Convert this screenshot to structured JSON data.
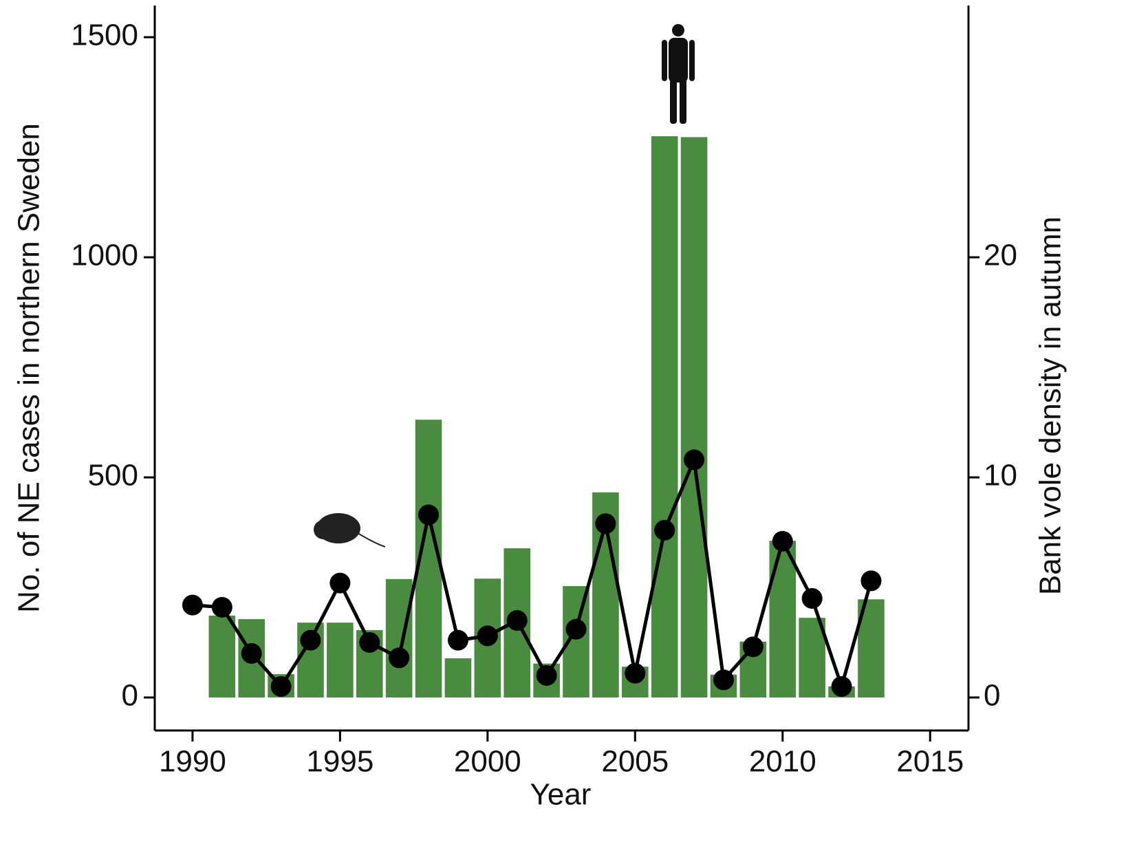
{
  "chart_data": {
    "type": "combo",
    "xlabel": "Year",
    "ylabel": "No. of NE cases in northern Sweden",
    "y2label": "Bank vole density in autumn",
    "xlim": [
      1988.72,
      2016.3
    ],
    "xticks": [
      1990,
      1995,
      2000,
      2005,
      2010,
      2015
    ],
    "ylim": [
      -75,
      1572
    ],
    "yticks": [
      0,
      500,
      1000,
      1500
    ],
    "y2lim": [
      -1.5,
      31.44
    ],
    "y2ticks": [
      0,
      10,
      20
    ],
    "series": [
      {
        "type": "bar",
        "color": "#4a8c3f",
        "x": [
          1991,
          1992,
          1993,
          1994,
          1995,
          1996,
          1997,
          1998,
          1999,
          2000,
          2001,
          2002,
          2003,
          2004,
          2005,
          2006,
          2007,
          2008,
          2009,
          2010,
          2011,
          2012,
          2013
        ],
        "values": [
          186,
          178,
          53,
          170,
          170,
          153,
          269,
          631,
          89,
          270,
          339,
          77,
          253,
          466,
          70,
          1275,
          1273,
          52,
          127,
          356,
          181,
          25,
          223
        ]
      },
      {
        "type": "line",
        "axis": "y2",
        "color": "#000000",
        "x": [
          1990,
          1991,
          1992,
          1993,
          1994,
          1995,
          1996,
          1997,
          1998,
          1999,
          2000,
          2001,
          2002,
          2003,
          2004,
          2005,
          2006,
          2007,
          2008,
          2009,
          2010,
          2011,
          2012,
          2013
        ],
        "values": [
          4.2,
          4.1,
          2.0,
          0.5,
          2.6,
          5.2,
          2.5,
          1.8,
          8.3,
          2.6,
          2.8,
          3.5,
          1.0,
          3.1,
          7.9,
          1.1,
          7.6,
          10.8,
          0.8,
          2.3,
          7.1,
          4.5,
          0.5,
          5.3
        ]
      }
    ]
  }
}
